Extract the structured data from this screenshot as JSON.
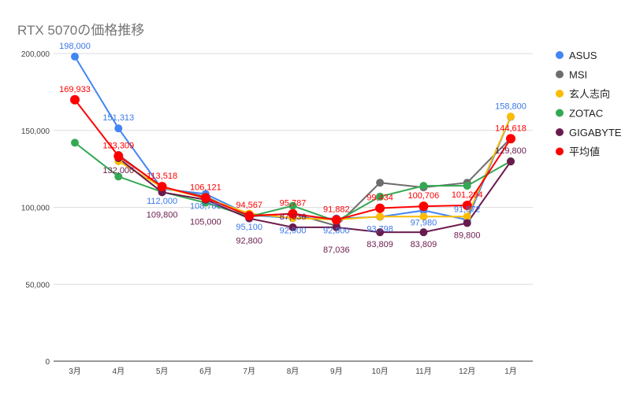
{
  "chart_data": {
    "type": "line",
    "title": "RTX 5070の価格推移",
    "xlabel": "",
    "ylabel": "",
    "categories": [
      "3月",
      "4月",
      "5月",
      "6月",
      "7月",
      "8月",
      "9月",
      "10月",
      "11月",
      "12月",
      "1月"
    ],
    "ylim": [
      0,
      200000
    ],
    "yticks": [
      0,
      50000,
      100000,
      150000,
      200000
    ],
    "ytick_labels": [
      "0",
      "50,000",
      "100,000",
      "150,000",
      "200,000"
    ],
    "grid": true,
    "legend_position": "right",
    "series": [
      {
        "name": "ASUS",
        "color": "#4285f4",
        "values": [
          198000,
          151313,
          112000,
          108700,
          95100,
          92900,
          92800,
          93798,
          97980,
          91872,
          158800
        ],
        "show_labels": true
      },
      {
        "name": "MSI",
        "color": "#6d6d6d",
        "values": [
          null,
          134111,
          113000,
          107000,
          94000,
          96000,
          88000,
          116000,
          113000,
          116000,
          145000
        ],
        "show_labels": false
      },
      {
        "name": "玄人志向",
        "color": "#fbbc04",
        "values": [
          null,
          130000,
          113000,
          106000,
          96000,
          93000,
          92000,
          94000,
          94000,
          94000,
          159000
        ],
        "show_labels": false
      },
      {
        "name": "ZOTAC",
        "color": "#34a853",
        "values": [
          142000,
          120000,
          110000,
          103000,
          94000,
          101000,
          91000,
          107000,
          114000,
          114000,
          130000
        ],
        "show_labels": false
      },
      {
        "name": "GIGABYTE",
        "color": "#6a1b4d",
        "values": [
          null,
          132000,
          109800,
          105000,
          92800,
          87036,
          87036,
          83809,
          83809,
          89800,
          129800
        ],
        "show_labels": true
      },
      {
        "name": "平均値",
        "color": "#ff0000",
        "values": [
          169933,
          133309,
          113518,
          106121,
          94567,
          95787,
          91882,
          99434,
          100706,
          101294,
          144618
        ],
        "show_labels": true
      }
    ]
  }
}
